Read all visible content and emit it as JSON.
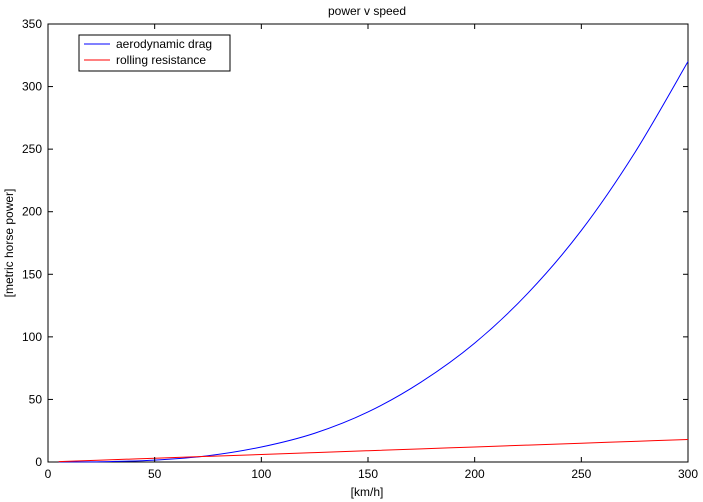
{
  "chart_data": {
    "type": "line",
    "title": "power v speed",
    "xlabel": "[km/h]",
    "ylabel": "[metric horse power]",
    "xlim": [
      0,
      300
    ],
    "ylim": [
      0,
      350
    ],
    "xticks": [
      0,
      50,
      100,
      150,
      200,
      250,
      300
    ],
    "yticks": [
      0,
      50,
      100,
      150,
      200,
      250,
      300,
      350
    ],
    "grid": false,
    "legend_position": "top-left",
    "series": [
      {
        "name": "aerodynamic drag",
        "color": "#0000ff",
        "x": [
          5,
          25,
          50,
          75,
          100,
          125,
          150,
          175,
          200,
          225,
          250,
          275,
          300
        ],
        "y": [
          0.1,
          0.2,
          1.5,
          5,
          12,
          23,
          40,
          64,
          95,
          135,
          185,
          247,
          320
        ]
      },
      {
        "name": "rolling resistance",
        "color": "#ff0000",
        "x": [
          5,
          25,
          50,
          75,
          100,
          125,
          150,
          175,
          200,
          225,
          250,
          275,
          300
        ],
        "y": [
          0.3,
          1.5,
          3,
          4.5,
          6,
          7.5,
          9,
          10.5,
          12,
          13.5,
          15,
          16.5,
          18
        ]
      }
    ]
  }
}
